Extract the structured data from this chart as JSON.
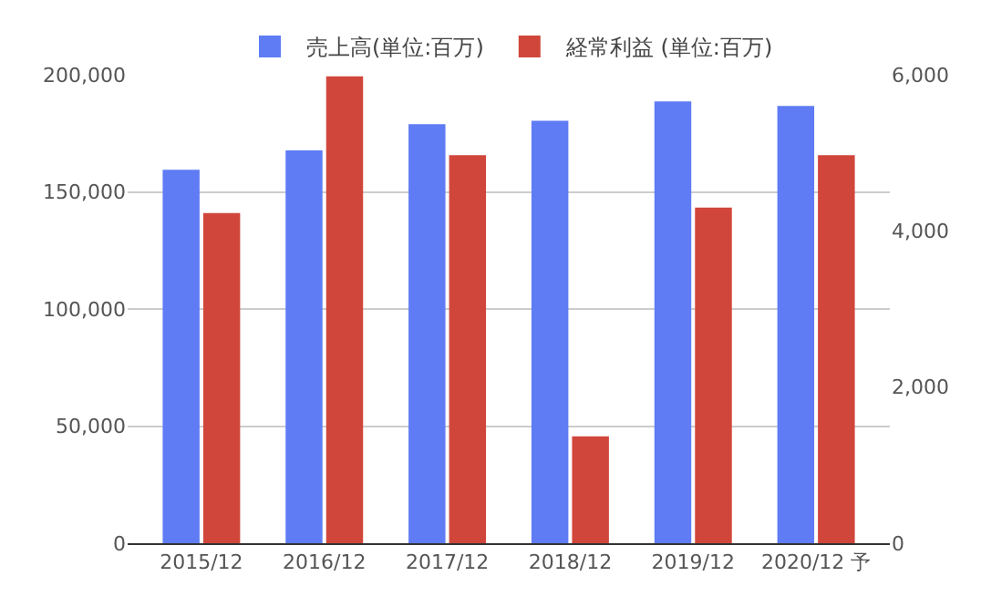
{
  "chart_data": {
    "type": "bar",
    "categories": [
      "2015/12",
      "2016/12",
      "2017/12",
      "2018/12",
      "2019/12",
      "2020/12 予"
    ],
    "series": [
      {
        "name": "売上高(単位:百万)",
        "color": "#5f7cf4",
        "values": [
          159400,
          167700,
          178900,
          180300,
          188600,
          186700
        ]
      },
      {
        "name": "経常利益 (単位:百万)",
        "color": "#d1463b",
        "values": [
          4230,
          5980,
          4970,
          1370,
          4300,
          4970
        ],
        "axis": "y2"
      }
    ],
    "ylim": [
      0,
      200000
    ],
    "yticks": [
      {
        "value": 0,
        "label": "0"
      },
      {
        "value": 50000,
        "label": "50,000"
      },
      {
        "value": 100000,
        "label": "100,000"
      },
      {
        "value": 150000,
        "label": "150,000"
      },
      {
        "value": 200000,
        "label": "200,000"
      }
    ],
    "y2lim": [
      0,
      6000
    ],
    "y2ticks": [
      {
        "value": 0,
        "label": "0"
      },
      {
        "value": 2000,
        "label": "2,000"
      },
      {
        "value": 4000,
        "label": "4,000"
      },
      {
        "value": 6000,
        "label": "6,000"
      }
    ],
    "grid": "y",
    "legend": "top"
  }
}
